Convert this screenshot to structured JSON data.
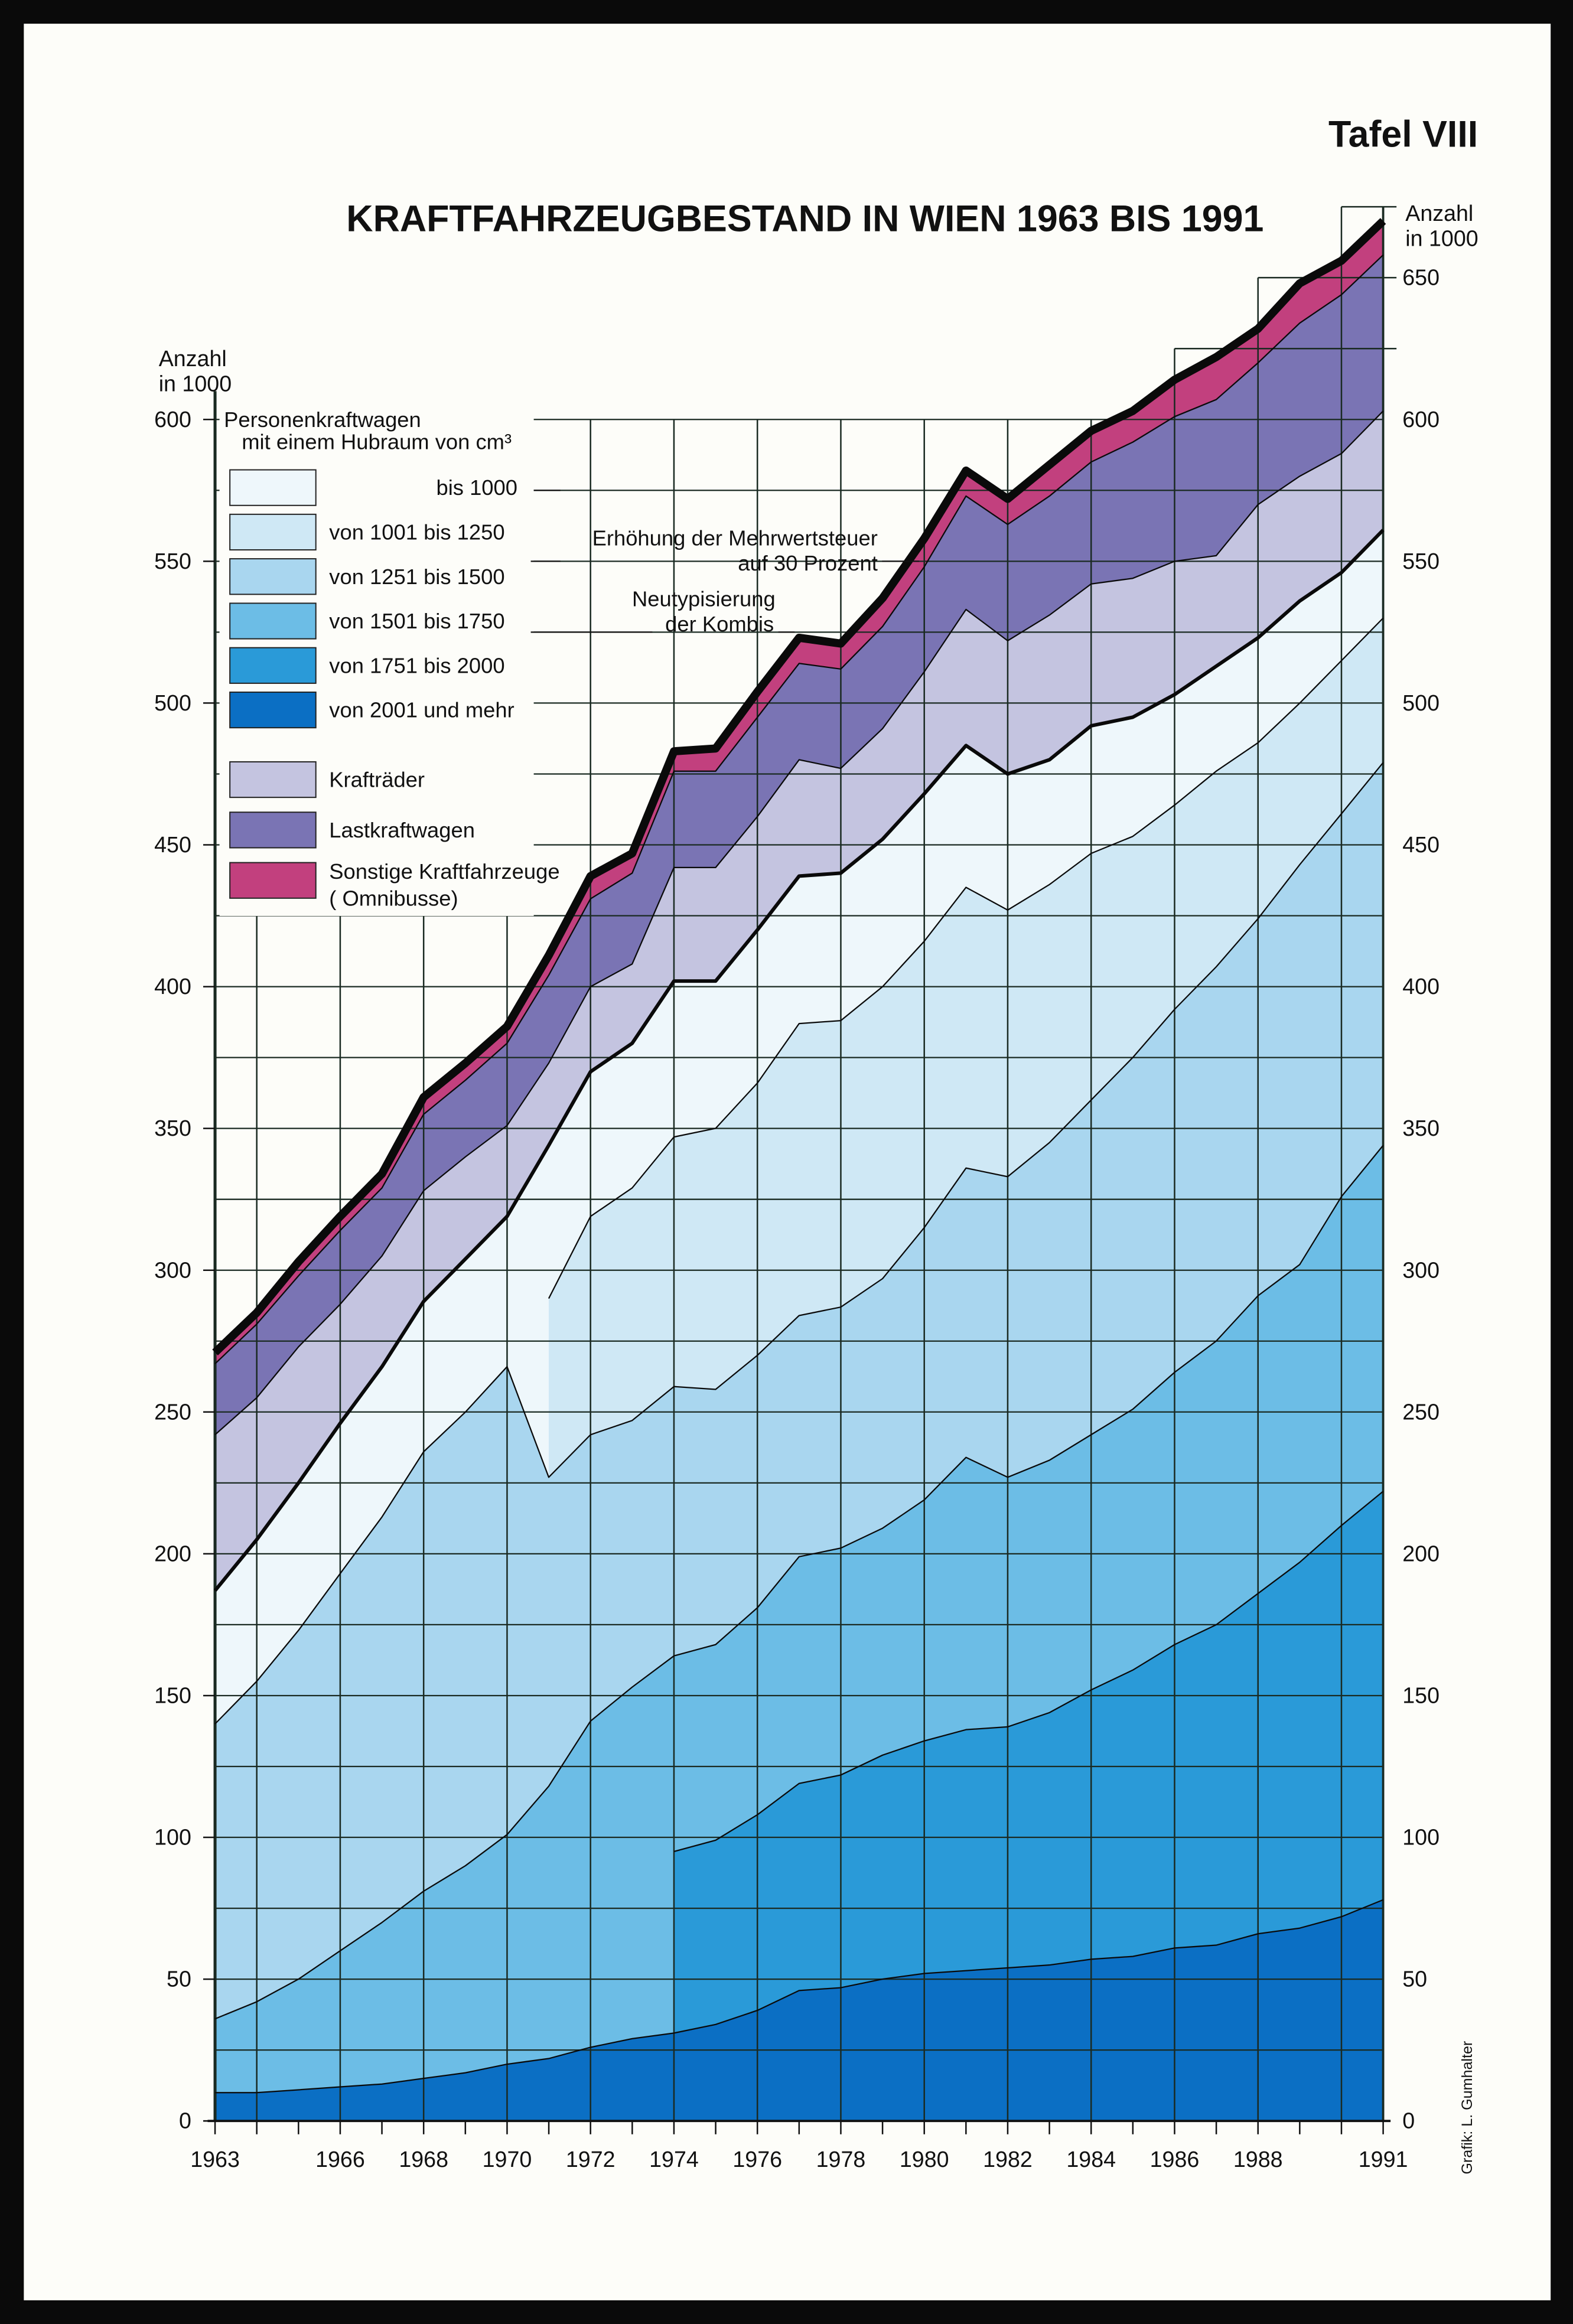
{
  "plate": "Tafel VIII",
  "credit": "Grafik: L. Gumhalter",
  "chart_data": {
    "type": "area",
    "stacked": true,
    "title": "KRAFTFAHRZEUGBESTAND IN WIEN 1963 BIS 1991",
    "ylabel_left": [
      "Anzahl",
      "in 1000"
    ],
    "ylabel_right": [
      "Anzahl",
      "in 1000"
    ],
    "ylim": [
      0,
      675
    ],
    "grid": true,
    "x": [
      1963,
      1964,
      1965,
      1966,
      1967,
      1968,
      1969,
      1970,
      1971,
      1972,
      1973,
      1974,
      1975,
      1976,
      1977,
      1978,
      1979,
      1980,
      1981,
      1982,
      1983,
      1984,
      1985,
      1986,
      1987,
      1988,
      1989,
      1990,
      1991
    ],
    "x_tick_labels": [
      "1963",
      "1966",
      "1968",
      "1970",
      "1972",
      "1974",
      "1976",
      "1978",
      "1980",
      "1982",
      "1984",
      "1986",
      "1988",
      "1991"
    ],
    "y_ticks_left": [
      "0",
      "50",
      "100",
      "150",
      "200",
      "250",
      "300",
      "350",
      "400",
      "450",
      "500",
      "550",
      "600"
    ],
    "y_ticks_right": [
      "0",
      "50",
      "100",
      "150",
      "200",
      "250",
      "300",
      "350",
      "400",
      "450",
      "500",
      "550",
      "600",
      "650"
    ],
    "legend": {
      "heading": [
        "Personenkraftwagen",
        "mit einem Hubraum von  cm³"
      ],
      "sonstige_sub": "( Omnibusse)"
    },
    "series": [
      {
        "name": "von 2001 und mehr",
        "color": "#0b6fc4",
        "values": [
          10,
          10,
          11,
          12,
          13,
          15,
          17,
          20,
          22,
          26,
          29,
          31,
          34,
          39,
          46,
          47,
          50,
          52,
          53,
          54,
          55,
          57,
          58,
          61,
          62,
          66,
          68,
          72,
          78
        ]
      },
      {
        "name": "von 1751 bis 2000",
        "color": "#2a9ad8",
        "values": [
          null,
          null,
          null,
          null,
          null,
          null,
          null,
          null,
          null,
          null,
          null,
          64,
          65,
          69,
          73,
          75,
          79,
          82,
          85,
          85,
          89,
          95,
          101,
          107,
          113,
          120,
          129,
          138,
          144
        ]
      },
      {
        "name": "von 1501 bis 1750",
        "color": "#6cbde6",
        "values": [
          26,
          32,
          39,
          48,
          57,
          66,
          73,
          81,
          96,
          115,
          124,
          69,
          69,
          73,
          80,
          80,
          80,
          85,
          96,
          88,
          89,
          90,
          92,
          96,
          100,
          105,
          105,
          116,
          122
        ]
      },
      {
        "name": "von 1251 bis 1500",
        "color": "#a9d6ef",
        "values": [
          104,
          113,
          123,
          133,
          143,
          155,
          160,
          165,
          109,
          101,
          94,
          95,
          90,
          89,
          85,
          85,
          88,
          96,
          102,
          106,
          112,
          118,
          124,
          128,
          132,
          133,
          141,
          135,
          135
        ]
      },
      {
        "name": "von 1001 bis 1250",
        "color": "#cfe8f5",
        "values": [
          null,
          null,
          null,
          null,
          null,
          null,
          null,
          null,
          63,
          77,
          82,
          88,
          92,
          96,
          103,
          101,
          103,
          101,
          99,
          94,
          91,
          87,
          78,
          72,
          69,
          62,
          57,
          54,
          51
        ]
      },
      {
        "name": "bis 1000",
        "color": "#eef7fb",
        "values": [
          47,
          50,
          52,
          53,
          53,
          53,
          54,
          53,
          54,
          51,
          51,
          55,
          52,
          54,
          52,
          52,
          52,
          52,
          50,
          48,
          44,
          45,
          42,
          39,
          37,
          37,
          36,
          31,
          31
        ]
      },
      {
        "name": "Krafträder",
        "color": "#c4c4e0",
        "values": [
          55,
          50,
          48,
          42,
          39,
          39,
          36,
          32,
          29,
          30,
          28,
          40,
          40,
          40,
          41,
          37,
          39,
          43,
          48,
          47,
          51,
          50,
          49,
          47,
          39,
          47,
          44,
          42,
          42
        ]
      },
      {
        "name": "Lastkraftwagen",
        "color": "#7a74b4",
        "values": [
          25,
          26,
          25,
          26,
          24,
          27,
          27,
          29,
          31,
          31,
          32,
          34,
          34,
          35,
          34,
          35,
          36,
          37,
          40,
          41,
          42,
          43,
          48,
          51,
          55,
          50,
          54,
          56,
          55
        ]
      },
      {
        "name": "Sonstige Kraftfahrzeuge",
        "color": "#c2407e",
        "values": [
          4,
          4,
          5,
          5,
          5,
          6,
          6,
          6,
          7,
          8,
          7,
          7,
          8,
          9,
          9,
          9,
          10,
          10,
          9,
          9,
          11,
          11,
          11,
          13,
          15,
          12,
          14,
          12,
          12
        ]
      }
    ],
    "annotations": [
      {
        "lines": [
          "Erhöhung der Mehrwertsteuer",
          "auf 30 Prozent"
        ],
        "year": 1980
      },
      {
        "lines": [
          "Neutypisierung",
          "der Kombis"
        ],
        "year": 1977
      }
    ]
  }
}
